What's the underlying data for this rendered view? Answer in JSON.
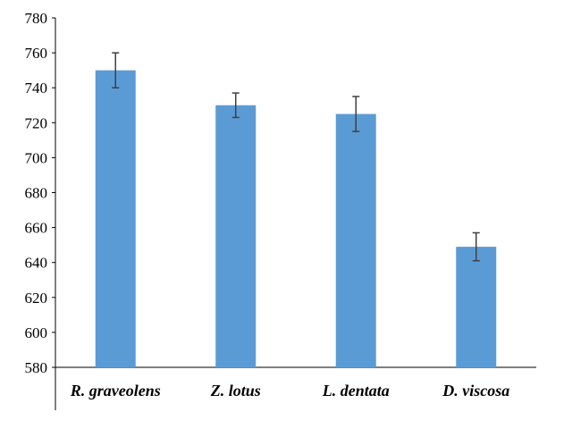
{
  "chart_data": {
    "type": "bar",
    "categories": [
      "R. graveolens",
      "Z. lotus",
      "L. dentata",
      "D. viscosa"
    ],
    "values": [
      750,
      730,
      725,
      649
    ],
    "error": [
      10,
      7,
      10,
      8
    ],
    "ylim": [
      580,
      780
    ],
    "yticks": [
      580,
      600,
      620,
      640,
      660,
      680,
      700,
      720,
      740,
      760,
      780
    ],
    "bar_color": "#5b9bd5",
    "error_color": "#404040",
    "grid": false,
    "legend": "none"
  }
}
